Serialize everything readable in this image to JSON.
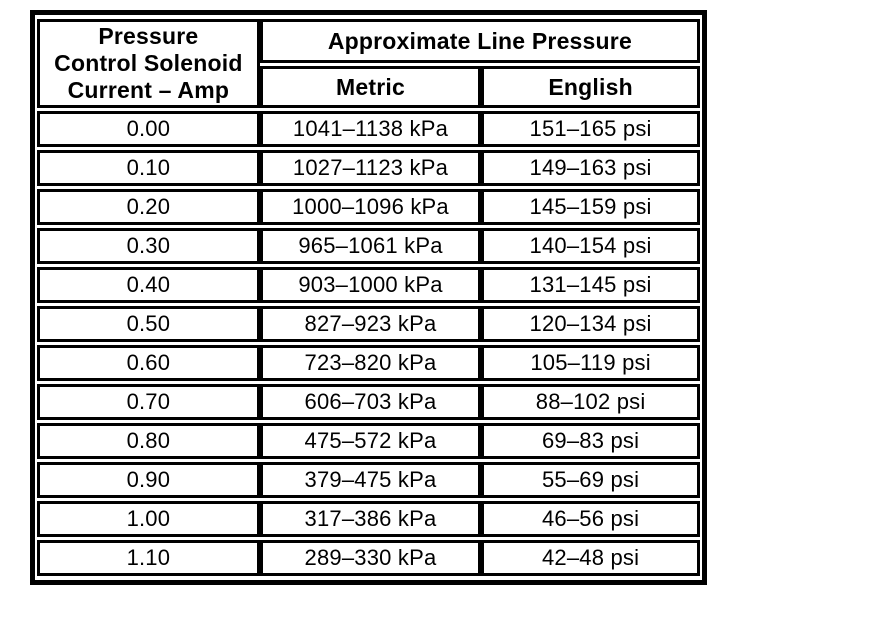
{
  "table": {
    "col1_header_lines": [
      "Pressure",
      "Control Solenoid",
      "Current – Amp"
    ],
    "group_header": "Approximate Line Pressure",
    "subheaders": {
      "metric": "Metric",
      "english": "English"
    },
    "rows": [
      {
        "amp": "0.00",
        "metric": "1041–1138 kPa",
        "english": "151–165 psi"
      },
      {
        "amp": "0.10",
        "metric": "1027–1123 kPa",
        "english": "149–163 psi"
      },
      {
        "amp": "0.20",
        "metric": "1000–1096 kPa",
        "english": "145–159 psi"
      },
      {
        "amp": "0.30",
        "metric": "965–1061 kPa",
        "english": "140–154 psi"
      },
      {
        "amp": "0.40",
        "metric": "903–1000 kPa",
        "english": "131–145 psi"
      },
      {
        "amp": "0.50",
        "metric": "827–923 kPa",
        "english": "120–134 psi"
      },
      {
        "amp": "0.60",
        "metric": "723–820 kPa",
        "english": "105–119 psi"
      },
      {
        "amp": "0.70",
        "metric": "606–703 kPa",
        "english": "88–102 psi"
      },
      {
        "amp": "0.80",
        "metric": "475–572 kPa",
        "english": "69–83 psi"
      },
      {
        "amp": "0.90",
        "metric": "379–475 kPa",
        "english": "55–69 psi"
      },
      {
        "amp": "1.00",
        "metric": "317–386 kPa",
        "english": "46–56 psi"
      },
      {
        "amp": "1.10",
        "metric": "289–330 kPa",
        "english": "42–48 psi"
      }
    ],
    "colors": {
      "line": "#000000",
      "background": "#ffffff",
      "text": "#000000"
    }
  }
}
